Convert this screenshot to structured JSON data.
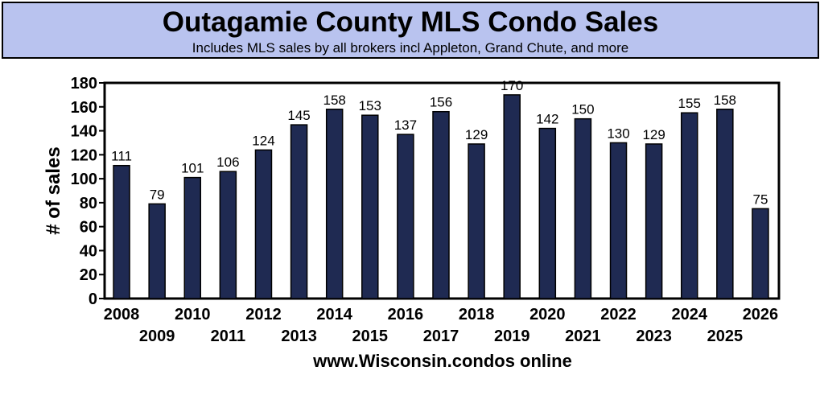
{
  "header": {
    "title": "Outagamie County MLS Condo Sales",
    "subtitle": "Includes MLS sales by all brokers incl Appleton, Grand Chute, and more"
  },
  "footer": {
    "source": "www.Wisconsin.condos online"
  },
  "colors": {
    "title_bg": "#b9c3ef",
    "bar": "#1f2a52"
  },
  "chart_data": {
    "type": "bar",
    "title": "Outagamie County MLS Condo Sales",
    "subtitle": "Includes MLS sales by all brokers incl Appleton, Grand Chute, and more",
    "xlabel": "",
    "ylabel": "# of sales",
    "ylim": [
      0,
      180
    ],
    "yticks": [
      0,
      20,
      40,
      60,
      80,
      100,
      120,
      140,
      160,
      180
    ],
    "grid": false,
    "legend": "none",
    "categories": [
      "2008",
      "2009",
      "2010",
      "2011",
      "2012",
      "2013",
      "2014",
      "2015",
      "2016",
      "2017",
      "2018",
      "2019",
      "2020",
      "2021",
      "2022",
      "2023",
      "2024",
      "2025",
      "2026"
    ],
    "values": [
      111,
      79,
      101,
      106,
      124,
      145,
      158,
      153,
      137,
      156,
      129,
      170,
      142,
      150,
      130,
      129,
      155,
      158,
      75
    ]
  }
}
